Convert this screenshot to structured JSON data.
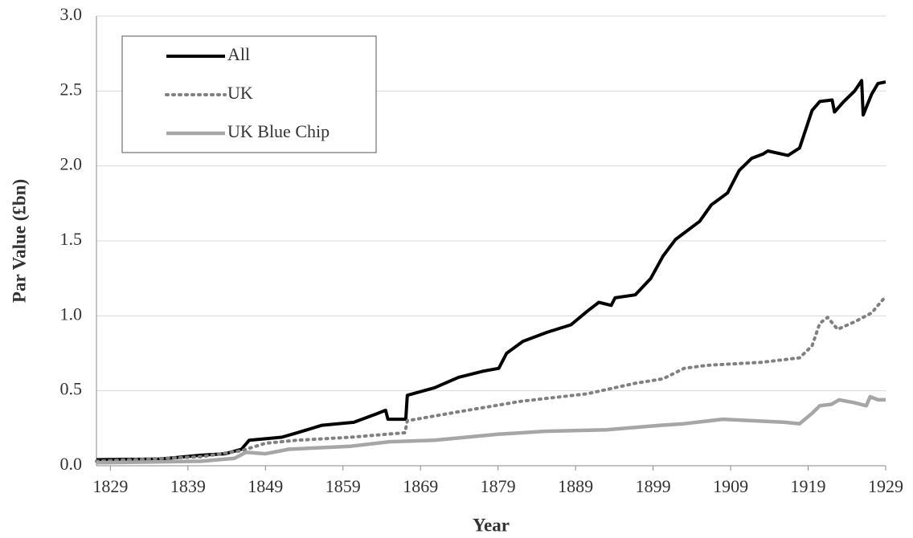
{
  "chart_data": {
    "type": "line",
    "x_label": "Year",
    "y_label": "Par Value (£bn)",
    "xlim": [
      1827.2,
      1929
    ],
    "xticks": [
      1829,
      1839,
      1849,
      1859,
      1869,
      1879,
      1889,
      1899,
      1909,
      1919,
      1929
    ],
    "ylim": [
      0,
      3
    ],
    "yticks": [
      {
        "value": 0,
        "label": "0.0"
      },
      0.5,
      {
        "value": 1,
        "label": "1.0"
      },
      1.5,
      {
        "value": 2,
        "label": "2.0"
      },
      2.5,
      {
        "value": 3,
        "label": "3.0"
      }
    ],
    "grid": true,
    "legend": "upper left",
    "series": [
      {
        "name": "All",
        "color": "#000000",
        "style": "solid",
        "x": [
          1827.2,
          1835.5,
          1840.7,
          1843.8,
          1845.9,
          1846.9,
          1849.0,
          1851.1,
          1853.1,
          1856.3,
          1860.4,
          1863.5,
          1864.5,
          1864.8,
          1867.1,
          1867.3,
          1870.8,
          1873.9,
          1877.0,
          1879.1,
          1880.1,
          1882.2,
          1885.3,
          1888.4,
          1890.5,
          1892.0,
          1893.6,
          1894.1,
          1896.7,
          1898.7,
          1900.3,
          1901.9,
          1905.0,
          1906.5,
          1908.6,
          1910.1,
          1911.7,
          1913.2,
          1913.8,
          1916.4,
          1917.9,
          1919.5,
          1920.5,
          1922.1,
          1922.4,
          1923.6,
          1925.0,
          1925.9,
          1926.1,
          1927.2,
          1928.0,
          1929.0
        ],
        "values": [
          0.04,
          0.045,
          0.07,
          0.08,
          0.11,
          0.17,
          0.18,
          0.19,
          0.22,
          0.27,
          0.29,
          0.35,
          0.37,
          0.31,
          0.31,
          0.47,
          0.52,
          0.59,
          0.63,
          0.65,
          0.75,
          0.83,
          0.89,
          0.94,
          1.03,
          1.09,
          1.07,
          1.12,
          1.14,
          1.25,
          1.4,
          1.51,
          1.63,
          1.74,
          1.82,
          1.97,
          2.05,
          2.08,
          2.1,
          2.07,
          2.12,
          2.37,
          2.43,
          2.44,
          2.36,
          2.43,
          2.5,
          2.57,
          2.34,
          2.48,
          2.55,
          2.56
        ]
      },
      {
        "name": "UK",
        "color": "#808080",
        "style": "dotted",
        "x": [
          1827.2,
          1840.7,
          1845.9,
          1849,
          1853,
          1860,
          1867,
          1867.3,
          1873.9,
          1882,
          1890.5,
          1896.7,
          1900.3,
          1903,
          1906,
          1913,
          1917.9,
          1919.5,
          1920.5,
          1921.5,
          1922.8,
          1925,
          1927.2,
          1929
        ],
        "values": [
          0.03,
          0.06,
          0.1,
          0.15,
          0.17,
          0.19,
          0.22,
          0.3,
          0.36,
          0.43,
          0.48,
          0.55,
          0.58,
          0.65,
          0.67,
          0.69,
          0.72,
          0.8,
          0.95,
          0.99,
          0.91,
          0.96,
          1.02,
          1.13
        ]
      },
      {
        "name": "UK Blue Chip",
        "color": "#a6a6a6",
        "style": "solid",
        "x": [
          1827.2,
          1840.7,
          1845,
          1846.5,
          1849,
          1852,
          1860,
          1865,
          1870.8,
          1879,
          1885,
          1893,
          1900,
          1903,
          1908,
          1912,
          1916,
          1917.9,
          1919.5,
          1920.5,
          1922,
          1923,
          1925,
          1926.5,
          1927,
          1928,
          1929
        ],
        "values": [
          0.02,
          0.03,
          0.05,
          0.09,
          0.08,
          0.11,
          0.13,
          0.16,
          0.17,
          0.21,
          0.23,
          0.24,
          0.27,
          0.28,
          0.31,
          0.3,
          0.29,
          0.28,
          0.35,
          0.4,
          0.41,
          0.44,
          0.42,
          0.4,
          0.46,
          0.44,
          0.44
        ]
      }
    ]
  }
}
